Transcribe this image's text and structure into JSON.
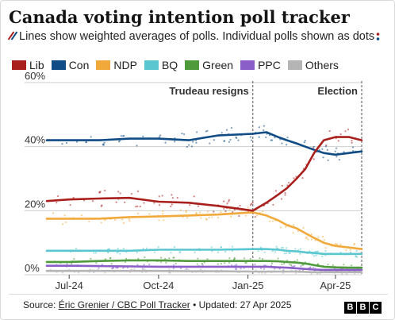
{
  "header": {
    "title": "Canada voting intention poll tracker",
    "subtitle": "Lines show weighted averages of polls. Individual polls shown as dots"
  },
  "footer": {
    "source_prefix": "Source: ",
    "source_link": "Éric Grenier / CBC Poll Tracker",
    "updated": " • Updated: 27 Apr 2025",
    "logo": [
      "B",
      "B",
      "C"
    ]
  },
  "colors": {
    "Lib": "#a91f1c",
    "Con": "#0f4b85",
    "NDP": "#f2a93b",
    "BQ": "#5ac6cf",
    "Green": "#4f9a3a",
    "PPC": "#8a5fc7",
    "Others": "#b5b5b5",
    "grid": "#cfcfcf",
    "annotation_line": "#555555"
  },
  "chart_data": {
    "type": "line",
    "xlabel": "",
    "ylabel": "",
    "ylim": [
      0,
      60
    ],
    "yticks": [
      "0%",
      "20%",
      "40%",
      "60%"
    ],
    "ytick_values": [
      0,
      20,
      40,
      60
    ],
    "xlim": [
      "2024-06-08",
      "2025-04-28"
    ],
    "xticks": [
      {
        "label": "Jul-24",
        "date": "2024-07-01"
      },
      {
        "label": "Oct-24",
        "date": "2024-10-01"
      },
      {
        "label": "Jan-25",
        "date": "2025-01-01"
      },
      {
        "label": "Apr-25",
        "date": "2025-04-01"
      }
    ],
    "annotations": [
      {
        "label": "Trudeau resigns",
        "date": "2025-01-06"
      },
      {
        "label": "Election",
        "date": "2025-04-28"
      }
    ],
    "legend_position": "top",
    "series": [
      {
        "name": "Lib",
        "values": [
          [
            "2024-06-08",
            23
          ],
          [
            "2024-07-01",
            23.5
          ],
          [
            "2024-08-01",
            23.8
          ],
          [
            "2024-09-01",
            24
          ],
          [
            "2024-10-01",
            22.8
          ],
          [
            "2024-11-01",
            22.5
          ],
          [
            "2024-12-01",
            21.5
          ],
          [
            "2025-01-06",
            20
          ],
          [
            "2025-01-20",
            22.5
          ],
          [
            "2025-02-01",
            25
          ],
          [
            "2025-02-10",
            27
          ],
          [
            "2025-02-20",
            30
          ],
          [
            "2025-03-01",
            33
          ],
          [
            "2025-03-10",
            38
          ],
          [
            "2025-03-20",
            42
          ],
          [
            "2025-04-01",
            43
          ],
          [
            "2025-04-15",
            43
          ],
          [
            "2025-04-28",
            42
          ]
        ]
      },
      {
        "name": "Con",
        "values": [
          [
            "2024-06-08",
            42
          ],
          [
            "2024-07-01",
            42
          ],
          [
            "2024-08-01",
            42
          ],
          [
            "2024-09-01",
            42.5
          ],
          [
            "2024-10-01",
            42.5
          ],
          [
            "2024-11-01",
            42
          ],
          [
            "2024-12-01",
            43.5
          ],
          [
            "2025-01-06",
            44
          ],
          [
            "2025-01-20",
            44.5
          ],
          [
            "2025-02-01",
            43
          ],
          [
            "2025-02-10",
            42
          ],
          [
            "2025-02-20",
            41
          ],
          [
            "2025-03-01",
            40
          ],
          [
            "2025-03-10",
            39
          ],
          [
            "2025-03-20",
            38
          ],
          [
            "2025-04-01",
            37.5
          ],
          [
            "2025-04-15",
            38
          ],
          [
            "2025-04-28",
            38.5
          ]
        ]
      },
      {
        "name": "NDP",
        "values": [
          [
            "2024-06-08",
            17.5
          ],
          [
            "2024-07-01",
            17.5
          ],
          [
            "2024-08-01",
            17.5
          ],
          [
            "2024-09-01",
            18
          ],
          [
            "2024-10-01",
            18.2
          ],
          [
            "2024-11-01",
            18.5
          ],
          [
            "2024-12-01",
            18.8
          ],
          [
            "2025-01-06",
            19.5
          ],
          [
            "2025-01-20",
            18.5
          ],
          [
            "2025-02-01",
            17
          ],
          [
            "2025-02-10",
            15.5
          ],
          [
            "2025-02-20",
            14.5
          ],
          [
            "2025-03-01",
            13
          ],
          [
            "2025-03-10",
            11.5
          ],
          [
            "2025-03-20",
            10
          ],
          [
            "2025-04-01",
            9
          ],
          [
            "2025-04-15",
            8.5
          ],
          [
            "2025-04-28",
            8
          ]
        ]
      },
      {
        "name": "BQ",
        "values": [
          [
            "2024-06-08",
            7.5
          ],
          [
            "2024-07-01",
            7.5
          ],
          [
            "2024-08-01",
            7.5
          ],
          [
            "2024-09-01",
            7.5
          ],
          [
            "2024-10-01",
            7.8
          ],
          [
            "2024-11-01",
            7.8
          ],
          [
            "2024-12-01",
            7.8
          ],
          [
            "2025-01-06",
            8
          ],
          [
            "2025-01-20",
            8
          ],
          [
            "2025-02-01",
            7.8
          ],
          [
            "2025-02-10",
            7.5
          ],
          [
            "2025-02-20",
            7.3
          ],
          [
            "2025-03-01",
            7
          ],
          [
            "2025-03-10",
            6.8
          ],
          [
            "2025-03-20",
            6.5
          ],
          [
            "2025-04-01",
            6.5
          ],
          [
            "2025-04-15",
            6.5
          ],
          [
            "2025-04-28",
            6.5
          ]
        ]
      },
      {
        "name": "Green",
        "values": [
          [
            "2024-06-08",
            4
          ],
          [
            "2024-07-01",
            4
          ],
          [
            "2024-08-01",
            4.3
          ],
          [
            "2024-09-01",
            4.5
          ],
          [
            "2024-10-01",
            4.5
          ],
          [
            "2024-11-01",
            4.3
          ],
          [
            "2024-12-01",
            4.3
          ],
          [
            "2025-01-06",
            4.3
          ],
          [
            "2025-01-20",
            4.3
          ],
          [
            "2025-02-01",
            4.2
          ],
          [
            "2025-02-10",
            4
          ],
          [
            "2025-02-20",
            3.8
          ],
          [
            "2025-03-01",
            3.5
          ],
          [
            "2025-03-10",
            3
          ],
          [
            "2025-03-20",
            2.5
          ],
          [
            "2025-04-01",
            2.3
          ],
          [
            "2025-04-15",
            2.2
          ],
          [
            "2025-04-28",
            2.2
          ]
        ]
      },
      {
        "name": "PPC",
        "values": [
          [
            "2024-06-08",
            2.8
          ],
          [
            "2024-07-01",
            2.8
          ],
          [
            "2024-08-01",
            2.7
          ],
          [
            "2024-09-01",
            2.6
          ],
          [
            "2024-10-01",
            2.5
          ],
          [
            "2024-11-01",
            2.5
          ],
          [
            "2024-12-01",
            2.5
          ],
          [
            "2025-01-06",
            2.5
          ],
          [
            "2025-01-20",
            2.5
          ],
          [
            "2025-02-01",
            2.3
          ],
          [
            "2025-02-10",
            2.2
          ],
          [
            "2025-02-20",
            2
          ],
          [
            "2025-03-01",
            1.8
          ],
          [
            "2025-03-10",
            1.6
          ],
          [
            "2025-03-20",
            1.5
          ],
          [
            "2025-04-01",
            1.5
          ],
          [
            "2025-04-15",
            1.5
          ],
          [
            "2025-04-28",
            1.5
          ]
        ]
      },
      {
        "name": "Others",
        "values": [
          [
            "2024-06-08",
            1.2
          ],
          [
            "2024-07-01",
            1.2
          ],
          [
            "2024-08-01",
            1.2
          ],
          [
            "2024-09-01",
            1.2
          ],
          [
            "2024-10-01",
            1.2
          ],
          [
            "2024-11-01",
            1.1
          ],
          [
            "2024-12-01",
            1.1
          ],
          [
            "2025-01-06",
            1
          ],
          [
            "2025-01-20",
            1
          ],
          [
            "2025-02-01",
            1
          ],
          [
            "2025-02-10",
            1
          ],
          [
            "2025-02-20",
            1
          ],
          [
            "2025-03-01",
            0.9
          ],
          [
            "2025-03-10",
            0.8
          ],
          [
            "2025-03-20",
            0.8
          ],
          [
            "2025-04-01",
            0.8
          ],
          [
            "2025-04-15",
            0.8
          ],
          [
            "2025-04-28",
            0.8
          ]
        ]
      }
    ]
  }
}
